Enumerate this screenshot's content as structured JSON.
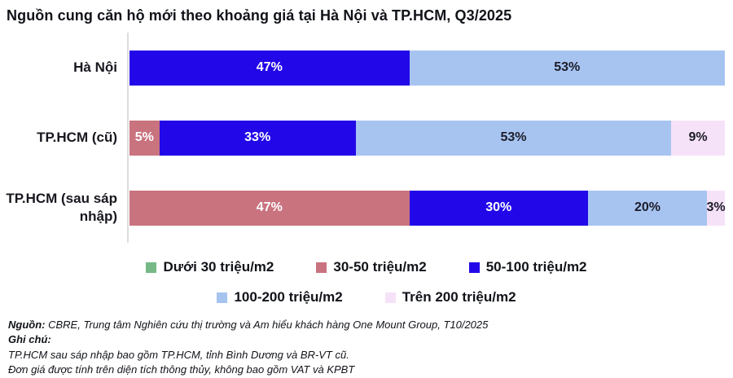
{
  "title": "Nguồn cung căn hộ mới theo khoảng giá tại Hà Nội và TP.HCM, Q3/2025",
  "chart_data": {
    "type": "bar",
    "orientation": "horizontal",
    "stacked": true,
    "unit": "%",
    "xlim": [
      0,
      100
    ],
    "grid": false,
    "legend_position": "bottom",
    "axis_color": "#dcdcdc",
    "title": "Nguồn cung căn hộ mới theo khoảng giá tại Hà Nội và TP.HCM, Q3/2025",
    "categories": [
      "Hà Nội",
      "TP.HCM (cũ)",
      "TP.HCM (sau sáp nhập)"
    ],
    "series": [
      {
        "name": "Dưới 30 triệu/m2",
        "color": "#76b987",
        "label_color": "#1c1c28",
        "values": [
          0,
          0,
          0
        ]
      },
      {
        "name": "30-50 triệu/m2",
        "color": "#c9737e",
        "label_color": "#ffffff",
        "values": [
          0,
          5,
          47
        ]
      },
      {
        "name": "50-100 triệu/m2",
        "color": "#2208e8",
        "label_color": "#ffffff",
        "values": [
          47,
          33,
          30
        ]
      },
      {
        "name": "100-200 triệu/m2",
        "color": "#a7c4f1",
        "label_color": "#1c1c28",
        "values": [
          53,
          53,
          20
        ]
      },
      {
        "name": "Trên 200 triệu/m2",
        "color": "#f6e2f8",
        "label_color": "#1c1c28",
        "values": [
          0,
          9,
          3
        ]
      }
    ]
  },
  "footer": {
    "source_label": "Nguồn:",
    "source_text": " CBRE, Trung tâm Nghiên cứu thị trường và Am hiểu khách hàng One Mount Group, T10/2025",
    "notes_label": "Ghi chú:",
    "note1": "TP.HCM sau sáp nhập bao gồm TP.HCM, tỉnh Bình Dương và BR-VT cũ.",
    "note2": "Đơn giá được tính trên diện tích thông thủy, không bao gồm VAT và KPBT"
  }
}
